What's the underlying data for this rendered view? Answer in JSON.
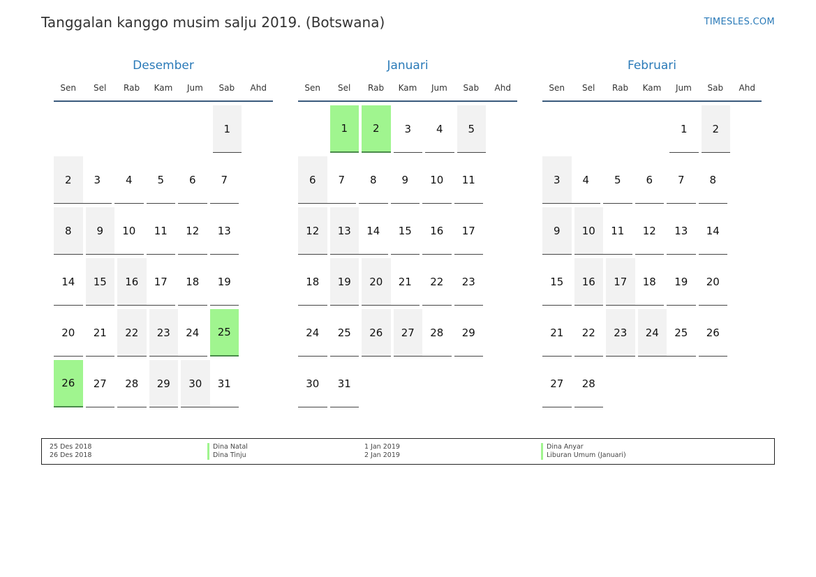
{
  "title": "Tanggalan kanggo musim salju 2019. (Botswana)",
  "brand": "TIMESLES.COM",
  "colors": {
    "accent": "#2a7ab8",
    "holiday": "#a0f58f",
    "weekend": "#f2f2f2"
  },
  "weekdays": [
    "Sen",
    "Sel",
    "Rab",
    "Kam",
    "Jum",
    "Sab",
    "Ahd"
  ],
  "months": [
    {
      "name": "Desember",
      "days": [
        {
          "n": ""
        },
        {
          "n": ""
        },
        {
          "n": ""
        },
        {
          "n": ""
        },
        {
          "n": ""
        },
        {
          "n": "1",
          "w": true
        },
        {
          "n": "2",
          "w": true
        },
        {
          "n": "3"
        },
        {
          "n": "4"
        },
        {
          "n": "5"
        },
        {
          "n": "6"
        },
        {
          "n": "7"
        },
        {
          "n": "8",
          "w": true
        },
        {
          "n": "9",
          "w": true
        },
        {
          "n": "10"
        },
        {
          "n": "11"
        },
        {
          "n": "12"
        },
        {
          "n": "13"
        },
        {
          "n": "14"
        },
        {
          "n": "15",
          "w": true
        },
        {
          "n": "16",
          "w": true
        },
        {
          "n": "17"
        },
        {
          "n": "18"
        },
        {
          "n": "19"
        },
        {
          "n": "20"
        },
        {
          "n": "21"
        },
        {
          "n": "22",
          "w": true
        },
        {
          "n": "23",
          "w": true
        },
        {
          "n": "24"
        },
        {
          "n": "25",
          "h": true
        },
        {
          "n": "26",
          "h": true
        },
        {
          "n": "27"
        },
        {
          "n": "28"
        },
        {
          "n": "29",
          "w": true
        },
        {
          "n": "30",
          "w": true
        },
        {
          "n": "31"
        }
      ]
    },
    {
      "name": "Januari",
      "days": [
        {
          "n": ""
        },
        {
          "n": "1",
          "h": true
        },
        {
          "n": "2",
          "h": true
        },
        {
          "n": "3"
        },
        {
          "n": "4"
        },
        {
          "n": "5",
          "w": true
        },
        {
          "n": "6",
          "w": true
        },
        {
          "n": "7"
        },
        {
          "n": "8"
        },
        {
          "n": "9"
        },
        {
          "n": "10"
        },
        {
          "n": "11"
        },
        {
          "n": "12",
          "w": true
        },
        {
          "n": "13",
          "w": true
        },
        {
          "n": "14"
        },
        {
          "n": "15"
        },
        {
          "n": "16"
        },
        {
          "n": "17"
        },
        {
          "n": "18"
        },
        {
          "n": "19",
          "w": true
        },
        {
          "n": "20",
          "w": true
        },
        {
          "n": "21"
        },
        {
          "n": "22"
        },
        {
          "n": "23"
        },
        {
          "n": "24"
        },
        {
          "n": "25"
        },
        {
          "n": "26",
          "w": true
        },
        {
          "n": "27",
          "w": true
        },
        {
          "n": "28"
        },
        {
          "n": "29"
        },
        {
          "n": "30"
        },
        {
          "n": "31"
        }
      ]
    },
    {
      "name": "Februari",
      "days": [
        {
          "n": ""
        },
        {
          "n": ""
        },
        {
          "n": ""
        },
        {
          "n": ""
        },
        {
          "n": "1"
        },
        {
          "n": "2",
          "w": true
        },
        {
          "n": "3",
          "w": true
        },
        {
          "n": "4"
        },
        {
          "n": "5"
        },
        {
          "n": "6"
        },
        {
          "n": "7"
        },
        {
          "n": "8"
        },
        {
          "n": "9",
          "w": true
        },
        {
          "n": "10",
          "w": true
        },
        {
          "n": "11"
        },
        {
          "n": "12"
        },
        {
          "n": "13"
        },
        {
          "n": "14"
        },
        {
          "n": "15"
        },
        {
          "n": "16",
          "w": true
        },
        {
          "n": "17",
          "w": true
        },
        {
          "n": "18"
        },
        {
          "n": "19"
        },
        {
          "n": "20"
        },
        {
          "n": "21"
        },
        {
          "n": "22"
        },
        {
          "n": "23",
          "w": true
        },
        {
          "n": "24",
          "w": true
        },
        {
          "n": "25"
        },
        {
          "n": "26"
        },
        {
          "n": "27"
        },
        {
          "n": "28"
        }
      ]
    }
  ],
  "legend": [
    {
      "date": "25 Des 2018",
      "name": "Dina Natal"
    },
    {
      "date": "26 Des 2018",
      "name": "Dina Tinju"
    },
    {
      "date": "1 Jan 2019",
      "name": "Dina Anyar"
    },
    {
      "date": "2 Jan 2019",
      "name": "Liburan Umum (Januari)"
    }
  ]
}
